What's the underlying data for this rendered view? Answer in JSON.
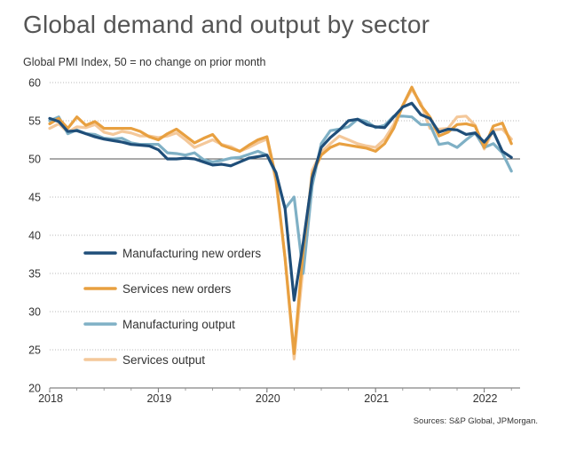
{
  "chart_data": {
    "type": "line",
    "title": "Global demand and output by sector",
    "subtitle": "Global PMI Index, 50 = no change on prior month",
    "source": "Sources: S&P Global, JPMorgan.",
    "ylim": [
      20,
      60
    ],
    "yticks": [
      20,
      25,
      30,
      35,
      40,
      45,
      50,
      55,
      60
    ],
    "xlim": [
      2018.0,
      2022.33
    ],
    "xticks": [
      {
        "value": 2018,
        "label": "2018"
      },
      {
        "value": 2019,
        "label": "2019"
      },
      {
        "value": 2020,
        "label": "2020"
      },
      {
        "value": 2021,
        "label": "2021"
      },
      {
        "value": 2022,
        "label": "2022"
      }
    ],
    "reference_line": 50,
    "grid": "horizontal dotted",
    "legend_position": "center-left",
    "x_start": 2018.0,
    "x_step_months": 1,
    "series": [
      {
        "name": "Manufacturing new orders",
        "color": "#1f4e79",
        "values": [
          55.3,
          54.9,
          53.6,
          53.7,
          53.3,
          52.9,
          52.6,
          52.4,
          52.2,
          51.9,
          51.8,
          51.7,
          51.2,
          50.0,
          50.0,
          50.1,
          50.0,
          49.6,
          49.2,
          49.3,
          49.1,
          49.6,
          50.1,
          50.3,
          50.5,
          48.2,
          43.5,
          31.5,
          39.0,
          47.5,
          51.5,
          52.8,
          53.8,
          55.0,
          55.2,
          54.5,
          54.2,
          54.1,
          55.5,
          56.8,
          57.3,
          55.8,
          55.3,
          53.5,
          53.9,
          53.8,
          53.2,
          53.4,
          52.2,
          53.6,
          51.0,
          50.2
        ]
      },
      {
        "name": "Services new orders",
        "color": "#e8a040",
        "values": [
          54.6,
          55.3,
          54.0,
          55.5,
          54.4,
          54.9,
          54.0,
          54.0,
          54.0,
          54.0,
          53.6,
          52.9,
          52.5,
          53.3,
          53.9,
          53.0,
          52.1,
          52.7,
          53.2,
          51.8,
          51.4,
          51.0,
          51.8,
          52.5,
          52.9,
          47.5,
          37.0,
          24.5,
          38.0,
          48.0,
          50.5,
          51.5,
          52.0,
          51.8,
          51.6,
          51.4,
          51.0,
          52.0,
          54.0,
          57.0,
          59.4,
          57.0,
          55.5,
          53.0,
          53.5,
          54.5,
          54.6,
          54.3,
          51.5,
          54.3,
          54.7,
          52.0
        ]
      },
      {
        "name": "Manufacturing output",
        "color": "#7fb0c5",
        "values": [
          55.0,
          55.5,
          53.3,
          53.8,
          53.3,
          53.2,
          52.7,
          52.6,
          52.7,
          52.1,
          51.9,
          51.9,
          51.9,
          50.8,
          50.7,
          50.5,
          50.8,
          49.9,
          49.6,
          49.8,
          50.1,
          50.2,
          50.6,
          51.0,
          50.5,
          48.0,
          43.5,
          45.0,
          35.0,
          46.5,
          52.0,
          53.7,
          53.9,
          54.2,
          55.2,
          54.9,
          54.1,
          54.4,
          55.6,
          55.6,
          55.5,
          54.5,
          54.5,
          51.9,
          52.1,
          51.5,
          52.5,
          53.4,
          51.5,
          52.0,
          50.8,
          48.4
        ]
      },
      {
        "name": "Services output",
        "color": "#f4c89a",
        "values": [
          54.0,
          54.6,
          53.5,
          54.2,
          54.1,
          54.5,
          53.5,
          53.2,
          53.6,
          53.4,
          53.0,
          53.0,
          52.8,
          53.0,
          53.4,
          52.5,
          51.5,
          52.0,
          52.5,
          51.9,
          51.6,
          51.0,
          51.5,
          52.1,
          52.6,
          47.0,
          37.0,
          23.8,
          36.0,
          48.5,
          50.9,
          52.0,
          53.0,
          52.5,
          52.0,
          51.7,
          51.5,
          52.6,
          54.5,
          57.0,
          59.1,
          57.3,
          54.0,
          53.9,
          54.0,
          55.5,
          55.6,
          54.4,
          51.3,
          53.8,
          53.9,
          52.6
        ]
      }
    ]
  }
}
